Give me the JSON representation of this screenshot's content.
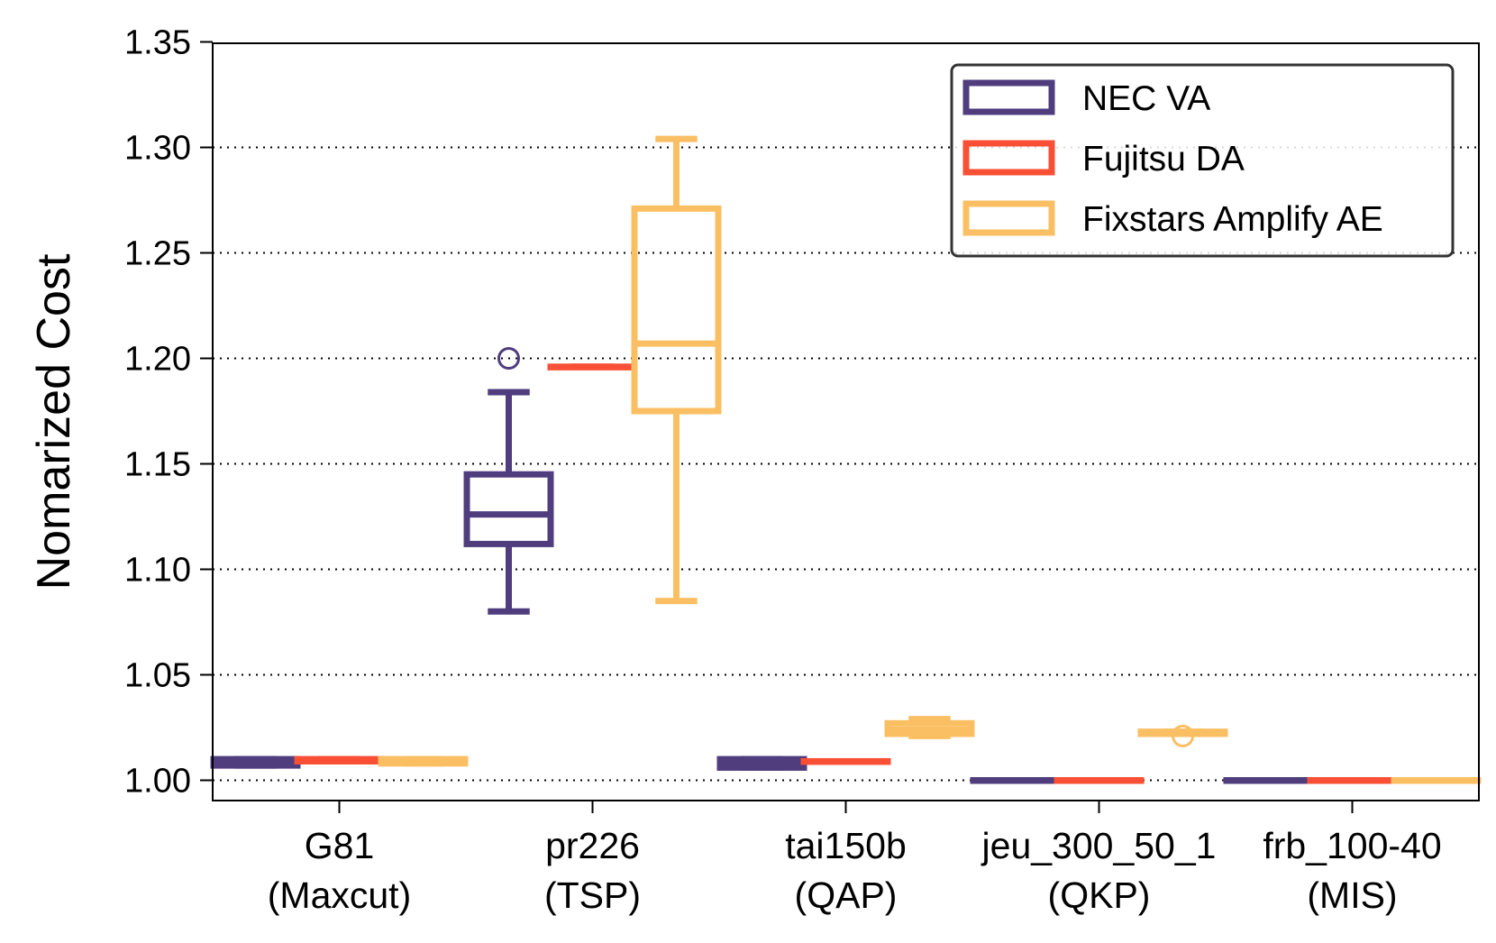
{
  "chart_data": {
    "type": "box",
    "ylabel": "Nomarized Cost",
    "xlabel": "",
    "ylim": [
      0.99,
      1.35
    ],
    "yticks": [
      "1.00",
      "1.05",
      "1.10",
      "1.15",
      "1.20",
      "1.25",
      "1.30",
      "1.35"
    ],
    "grid": "horizontal dotted",
    "legend_position": "top-right",
    "categories": [
      {
        "line1": "G81",
        "line2": "(Maxcut)"
      },
      {
        "line1": "pr226",
        "line2": "(TSP)"
      },
      {
        "line1": "tai150b",
        "line2": "(QAP)"
      },
      {
        "line1": "jeu_300_50_1",
        "line2": "(QKP)"
      },
      {
        "line1": "frb_100-40",
        "line2": "(MIS)"
      }
    ],
    "series": [
      {
        "name": "NEC VA",
        "color": "#4f3d7e",
        "boxes": [
          {
            "whislo": 1.007,
            "q1": 1.007,
            "med": 1.008,
            "q3": 1.01,
            "whishi": 1.01,
            "fliers": []
          },
          {
            "whislo": 1.08,
            "q1": 1.112,
            "med": 1.126,
            "q3": 1.145,
            "whishi": 1.184,
            "fliers": [
              1.2
            ]
          },
          {
            "whislo": 1.006,
            "q1": 1.006,
            "med": 1.008,
            "q3": 1.01,
            "whishi": 1.01,
            "fliers": []
          },
          {
            "whislo": 1.0,
            "q1": 1.0,
            "med": 1.0,
            "q3": 1.0,
            "whishi": 1.0,
            "fliers": []
          },
          {
            "whislo": 1.0,
            "q1": 1.0,
            "med": 1.0,
            "q3": 1.0,
            "whishi": 1.0,
            "fliers": []
          }
        ]
      },
      {
        "name": "Fujitsu DA",
        "color": "#f84f35",
        "boxes": [
          {
            "whislo": 1.009,
            "q1": 1.009,
            "med": 1.009,
            "q3": 1.01,
            "whishi": 1.01,
            "fliers": []
          },
          {
            "whislo": 1.196,
            "q1": 1.196,
            "med": 1.196,
            "q3": 1.196,
            "whishi": 1.196,
            "fliers": []
          },
          {
            "whislo": 1.009,
            "q1": 1.009,
            "med": 1.009,
            "q3": 1.009,
            "whishi": 1.009,
            "fliers": []
          },
          {
            "whislo": 1.0,
            "q1": 1.0,
            "med": 1.0,
            "q3": 1.0,
            "whishi": 1.0,
            "fliers": []
          },
          {
            "whislo": 1.0,
            "q1": 1.0,
            "med": 1.0,
            "q3": 1.0,
            "whishi": 1.0,
            "fliers": []
          }
        ]
      },
      {
        "name": "Fixstars Amplify AE",
        "color": "#fbbf63",
        "boxes": [
          {
            "whislo": 1.008,
            "q1": 1.008,
            "med": 1.009,
            "q3": 1.01,
            "whishi": 1.01,
            "fliers": []
          },
          {
            "whislo": 1.085,
            "q1": 1.175,
            "med": 1.207,
            "q3": 1.271,
            "whishi": 1.304,
            "fliers": []
          },
          {
            "whislo": 1.021,
            "q1": 1.022,
            "med": 1.024,
            "q3": 1.027,
            "whishi": 1.029,
            "fliers": []
          },
          {
            "whislo": 1.022,
            "q1": 1.022,
            "med": 1.022,
            "q3": 1.023,
            "whishi": 1.023,
            "fliers": [
              1.021
            ]
          },
          {
            "whislo": 1.0,
            "q1": 1.0,
            "med": 1.0,
            "q3": 1.0,
            "whishi": 1.0,
            "fliers": []
          }
        ]
      }
    ]
  }
}
